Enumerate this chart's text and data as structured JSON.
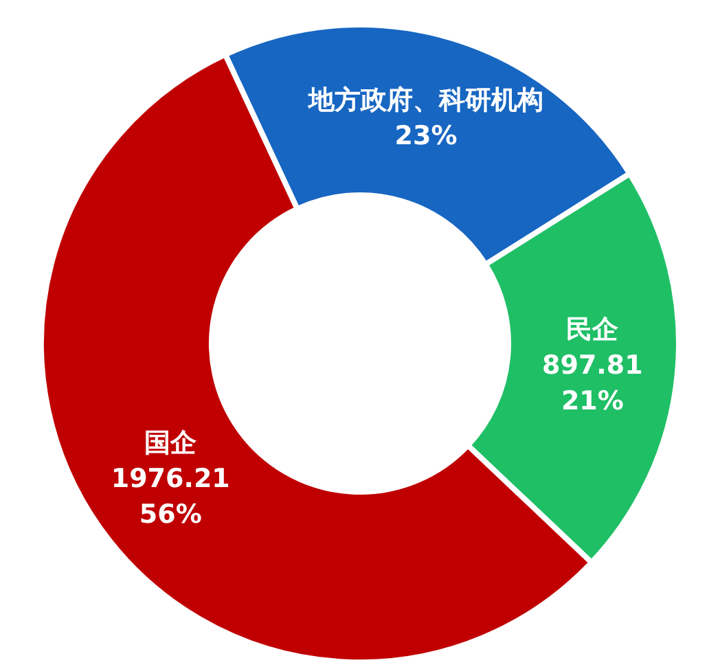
{
  "chart_data": {
    "type": "donut",
    "categories": [
      "地方政府、科研机构",
      "民企",
      "国企"
    ],
    "values": [
      23,
      21,
      56
    ],
    "value_labels": [
      "23%",
      "897.81\n21%",
      "1976.21\n56%"
    ],
    "colors": [
      "#1766c2",
      "#1fbf66",
      "#c00000"
    ]
  }
}
